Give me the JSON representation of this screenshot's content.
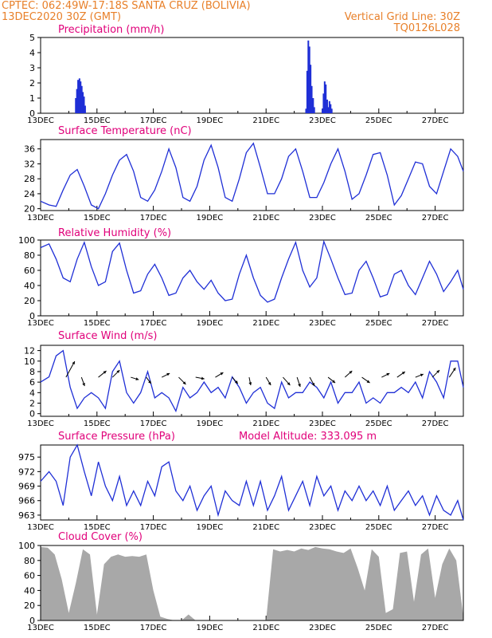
{
  "header": {
    "line1_left": "CPTEC:   062:49W-17:18S   SANTA CRUZ (BOLIVIA)",
    "line2_left": "13DEC2020 30Z (GMT)",
    "line2_right": "Vertical Grid Line: 30Z",
    "line3_right": "TQ0126L028"
  },
  "colors": {
    "header": "#e8802a",
    "title": "#e0007a",
    "series": "#1f2fd6",
    "cloud": "#a8a8a8",
    "axis": "#000000"
  },
  "x_tick_labels": [
    "13DEC",
    "15DEC",
    "17DEC",
    "19DEC",
    "21DEC",
    "23DEC",
    "25DEC",
    "27DEC"
  ],
  "chart_data": [
    {
      "type": "bar",
      "title": "Precipitation (mm/h)",
      "ylim": [
        0,
        5
      ],
      "yticks": [
        0,
        1,
        2,
        3,
        4,
        5
      ],
      "x_unit": "days after 13DEC 00Z",
      "x": [
        1.25,
        1.29,
        1.33,
        1.38,
        1.42,
        1.46,
        1.5,
        1.54,
        1.58,
        9.42,
        9.46,
        9.5,
        9.54,
        9.58,
        9.62,
        9.67,
        9.71,
        10.0,
        10.04,
        10.08,
        10.12,
        10.17,
        10.21,
        10.25,
        10.29,
        10.33
      ],
      "values": [
        1.0,
        1.6,
        2.2,
        2.3,
        2.1,
        1.8,
        1.4,
        1.1,
        0.5,
        0.3,
        2.8,
        4.8,
        4.4,
        3.2,
        1.8,
        1.0,
        0.4,
        0.3,
        1.3,
        2.1,
        1.9,
        0.9,
        0.4,
        0.8,
        0.6,
        0.3
      ]
    },
    {
      "type": "line",
      "title": "Surface Temperature (nC)",
      "ylim": [
        19.5,
        38.5
      ],
      "yticks": [
        20,
        24,
        28,
        32,
        36
      ],
      "x_unit": "days after 13DEC 00Z",
      "series": [
        {
          "x": [
            0,
            0.3,
            0.55,
            0.8,
            1.05,
            1.3,
            1.55,
            1.8,
            2.05,
            2.3,
            2.55,
            2.8,
            3.05,
            3.3,
            3.55,
            3.8,
            4.05,
            4.3,
            4.55,
            4.8,
            5.05,
            5.3,
            5.55,
            5.8,
            6.05,
            6.3,
            6.55,
            6.8,
            7.05,
            7.3,
            7.55,
            7.8,
            8.05,
            8.3,
            8.55,
            8.8,
            9.05,
            9.3,
            9.55,
            9.8,
            10.05,
            10.3,
            10.55,
            10.8,
            11.05,
            11.3,
            11.55,
            11.8,
            12.05,
            12.3,
            12.55,
            12.8,
            13.05,
            13.3,
            13.55,
            13.8,
            14.05,
            14.3,
            14.55,
            14.8,
            15
          ],
          "values": [
            22,
            21,
            20.6,
            25,
            29,
            30.5,
            26,
            21,
            20,
            24,
            29,
            33,
            34.5,
            30,
            23,
            22,
            25,
            30,
            36,
            31,
            23,
            22,
            26,
            33,
            37,
            31,
            23,
            22,
            28,
            35,
            37.5,
            31,
            24,
            24,
            28,
            34,
            36,
            30,
            23,
            23,
            27,
            32,
            36,
            30,
            22.5,
            24,
            29,
            34.5,
            35,
            29,
            21,
            23.5,
            28,
            32.5,
            32,
            26,
            24,
            30,
            36,
            34,
            30
          ]
        }
      ]
    },
    {
      "type": "line",
      "title": "Relative Humidity (%)",
      "ylim": [
        0,
        100
      ],
      "yticks": [
        0,
        20,
        40,
        60,
        80,
        100
      ],
      "x_unit": "days after 13DEC 00Z",
      "series": [
        {
          "x": [
            0,
            0.3,
            0.55,
            0.8,
            1.05,
            1.3,
            1.55,
            1.8,
            2.05,
            2.3,
            2.55,
            2.8,
            3.05,
            3.3,
            3.55,
            3.8,
            4.05,
            4.3,
            4.55,
            4.8,
            5.05,
            5.3,
            5.55,
            5.8,
            6.05,
            6.3,
            6.55,
            6.8,
            7.05,
            7.3,
            7.55,
            7.8,
            8.05,
            8.3,
            8.55,
            8.8,
            9.05,
            9.3,
            9.55,
            9.8,
            10.05,
            10.3,
            10.55,
            10.8,
            11.05,
            11.3,
            11.55,
            11.8,
            12.05,
            12.3,
            12.55,
            12.8,
            13.05,
            13.3,
            13.55,
            13.8,
            14.05,
            14.3,
            14.55,
            14.8,
            15
          ],
          "values": [
            90,
            95,
            75,
            50,
            45,
            75,
            97,
            65,
            40,
            45,
            85,
            96,
            60,
            30,
            33,
            55,
            68,
            50,
            27,
            30,
            50,
            60,
            45,
            35,
            47,
            30,
            20,
            22,
            55,
            80,
            50,
            27,
            18,
            22,
            50,
            75,
            97,
            60,
            38,
            50,
            98,
            75,
            50,
            28,
            30,
            60,
            72,
            50,
            25,
            28,
            55,
            60,
            40,
            28,
            50,
            72,
            55,
            32,
            45,
            60,
            35
          ]
        }
      ]
    },
    {
      "type": "line",
      "title": "Surface Wind (m/s)",
      "ylim": [
        -0.5,
        13
      ],
      "yticks": [
        0,
        2,
        4,
        6,
        8,
        10,
        12
      ],
      "x_unit": "days after 13DEC 00Z",
      "series": [
        {
          "x": [
            0,
            0.3,
            0.55,
            0.8,
            1.05,
            1.3,
            1.55,
            1.8,
            2.05,
            2.3,
            2.55,
            2.8,
            3.05,
            3.3,
            3.55,
            3.8,
            4.05,
            4.3,
            4.55,
            4.8,
            5.05,
            5.3,
            5.55,
            5.8,
            6.05,
            6.3,
            6.55,
            6.8,
            7.05,
            7.3,
            7.55,
            7.8,
            8.05,
            8.3,
            8.55,
            8.8,
            9.05,
            9.3,
            9.55,
            9.8,
            10.05,
            10.3,
            10.55,
            10.8,
            11.05,
            11.3,
            11.55,
            11.8,
            12.05,
            12.3,
            12.55,
            12.8,
            13.05,
            13.3,
            13.55,
            13.8,
            14.05,
            14.3,
            14.55,
            14.8,
            15
          ],
          "values": [
            6,
            7,
            11,
            12,
            5,
            1,
            3,
            4,
            3,
            1,
            8,
            10,
            4,
            2,
            4,
            8,
            3,
            4,
            3,
            0.5,
            5,
            3,
            4,
            6,
            4,
            5,
            3,
            7,
            5,
            2,
            4,
            5,
            2,
            1,
            6,
            3,
            4,
            4,
            6,
            5,
            3,
            6,
            2,
            4,
            4,
            6,
            2,
            3,
            2,
            4,
            4,
            5,
            4,
            6,
            3,
            8,
            6,
            3,
            10,
            10,
            5
          ]
        }
      ],
      "arrows": [
        {
          "x": 0.9,
          "dx": 0.55,
          "dy": -1.0
        },
        {
          "x": 1.45,
          "dx": 0.2,
          "dy": 0.55
        },
        {
          "x": 2.05,
          "dx": 0.5,
          "dy": -0.4
        },
        {
          "x": 2.55,
          "dx": 0.45,
          "dy": -0.45
        },
        {
          "x": 3.2,
          "dx": 0.5,
          "dy": 0.15
        },
        {
          "x": 3.75,
          "dx": 0.3,
          "dy": 0.4
        },
        {
          "x": 4.3,
          "dx": 0.5,
          "dy": -0.25
        },
        {
          "x": 4.9,
          "dx": 0.45,
          "dy": 0.45
        },
        {
          "x": 5.5,
          "dx": 0.55,
          "dy": 0.1
        },
        {
          "x": 6.2,
          "dx": 0.5,
          "dy": -0.3
        },
        {
          "x": 6.8,
          "dx": 0.35,
          "dy": 0.4
        },
        {
          "x": 7.4,
          "dx": 0.1,
          "dy": 0.5
        },
        {
          "x": 8.0,
          "dx": 0.3,
          "dy": 0.5
        },
        {
          "x": 8.6,
          "dx": 0.45,
          "dy": 0.5
        },
        {
          "x": 9.1,
          "dx": 0.2,
          "dy": 0.6
        },
        {
          "x": 9.55,
          "dx": 0.3,
          "dy": 0.55
        },
        {
          "x": 10.2,
          "dx": 0.45,
          "dy": 0.35
        },
        {
          "x": 10.8,
          "dx": 0.45,
          "dy": -0.4
        },
        {
          "x": 11.4,
          "dx": 0.5,
          "dy": 0.35
        },
        {
          "x": 12.1,
          "dx": 0.5,
          "dy": -0.25
        },
        {
          "x": 12.65,
          "dx": 0.5,
          "dy": -0.35
        },
        {
          "x": 13.3,
          "dx": 0.5,
          "dy": -0.2
        },
        {
          "x": 13.9,
          "dx": 0.45,
          "dy": -0.45
        },
        {
          "x": 14.5,
          "dx": 0.4,
          "dy": -0.6
        }
      ]
    },
    {
      "type": "line",
      "title": "Surface Pressure (hPa)",
      "subtitle": "Model Altitude: 333.095 m",
      "ylim": [
        962,
        977.5
      ],
      "yticks": [
        963,
        966,
        969,
        972,
        975
      ],
      "x_unit": "days after 13DEC 00Z",
      "series": [
        {
          "x": [
            0,
            0.3,
            0.55,
            0.8,
            1.05,
            1.3,
            1.55,
            1.8,
            2.05,
            2.3,
            2.55,
            2.8,
            3.05,
            3.3,
            3.55,
            3.8,
            4.05,
            4.3,
            4.55,
            4.8,
            5.05,
            5.3,
            5.55,
            5.8,
            6.05,
            6.3,
            6.55,
            6.8,
            7.05,
            7.3,
            7.55,
            7.8,
            8.05,
            8.3,
            8.55,
            8.8,
            9.05,
            9.3,
            9.55,
            9.8,
            10.05,
            10.3,
            10.55,
            10.8,
            11.05,
            11.3,
            11.55,
            11.8,
            12.05,
            12.3,
            12.55,
            12.8,
            13.05,
            13.3,
            13.55,
            13.8,
            14.05,
            14.3,
            14.55,
            14.8,
            15
          ],
          "values": [
            970,
            972,
            970,
            965,
            975,
            977.5,
            972,
            967,
            974,
            969,
            966,
            971,
            965,
            968,
            965,
            970,
            967,
            973,
            974,
            968,
            966,
            969,
            964,
            967,
            969,
            963,
            968,
            966,
            965,
            970,
            965,
            970,
            964,
            967,
            971,
            964,
            967,
            970,
            965,
            971,
            967,
            969,
            964,
            968,
            966,
            969,
            966,
            968,
            965,
            969,
            964,
            966,
            968,
            965,
            967,
            963,
            967,
            964,
            963,
            966,
            962
          ]
        }
      ]
    },
    {
      "type": "area",
      "title": "Cloud Cover (%)",
      "ylim": [
        0,
        100
      ],
      "yticks": [
        0,
        20,
        40,
        60,
        80,
        100
      ],
      "x_unit": "days after 13DEC 00Z",
      "series": [
        {
          "x": [
            0,
            0.25,
            0.5,
            0.75,
            1,
            1.25,
            1.5,
            1.75,
            2,
            2.25,
            2.5,
            2.75,
            3,
            3.25,
            3.5,
            3.75,
            4,
            4.25,
            4.5,
            4.75,
            5,
            5.25,
            5.5,
            5.75,
            6,
            6.25,
            6.5,
            6.75,
            7,
            7.25,
            7.5,
            7.75,
            8,
            8.25,
            8.5,
            8.75,
            9,
            9.25,
            9.5,
            9.75,
            10,
            10.25,
            10.5,
            10.75,
            11,
            11.25,
            11.5,
            11.75,
            12,
            12.25,
            12.5,
            12.75,
            13,
            13.25,
            13.5,
            13.75,
            14,
            14.25,
            14.5,
            14.75,
            15
          ],
          "values": [
            98,
            97,
            88,
            55,
            10,
            50,
            95,
            88,
            8,
            75,
            85,
            88,
            85,
            86,
            85,
            88,
            40,
            5,
            2,
            0,
            0,
            8,
            0,
            0,
            0,
            0,
            0,
            0,
            0,
            0,
            0,
            0,
            0,
            95,
            92,
            94,
            92,
            96,
            94,
            98,
            96,
            95,
            92,
            90,
            96,
            70,
            40,
            95,
            85,
            10,
            15,
            90,
            92,
            25,
            88,
            96,
            30,
            75,
            96,
            80,
            5
          ]
        }
      ]
    }
  ]
}
